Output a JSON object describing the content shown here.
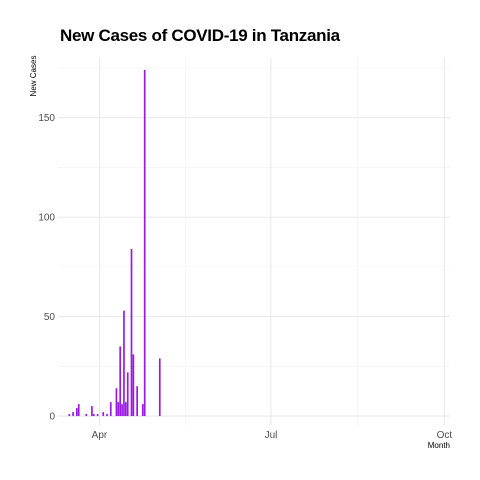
{
  "chart_data": {
    "type": "bar",
    "title": "New Cases of COVID-19 in Tanzania",
    "xlabel": "Month",
    "ylabel": "New Cases",
    "x_axis_type": "date",
    "xlim": [
      "2020-03-10",
      "2020-10-04"
    ],
    "ylim": [
      -5,
      180
    ],
    "y_ticks": [
      0,
      50,
      100,
      150
    ],
    "x_ticks": [
      {
        "date": "2020-04-01",
        "label": "Apr"
      },
      {
        "date": "2020-07-01",
        "label": "Jul"
      },
      {
        "date": "2020-10-01",
        "label": "Oct"
      }
    ],
    "grid": true,
    "bar_color": "#9b1ae3",
    "series": [
      {
        "points": [
          {
            "date": "2020-03-16",
            "value": 1
          },
          {
            "date": "2020-03-18",
            "value": 2
          },
          {
            "date": "2020-03-20",
            "value": 4
          },
          {
            "date": "2020-03-21",
            "value": 6
          },
          {
            "date": "2020-03-25",
            "value": 1
          },
          {
            "date": "2020-03-28",
            "value": 5
          },
          {
            "date": "2020-03-29",
            "value": 1
          },
          {
            "date": "2020-03-31",
            "value": 1
          },
          {
            "date": "2020-04-03",
            "value": 2
          },
          {
            "date": "2020-04-05",
            "value": 1
          },
          {
            "date": "2020-04-07",
            "value": 7
          },
          {
            "date": "2020-04-10",
            "value": 14
          },
          {
            "date": "2020-04-11",
            "value": 7
          },
          {
            "date": "2020-04-12",
            "value": 35
          },
          {
            "date": "2020-04-13",
            "value": 6
          },
          {
            "date": "2020-04-14",
            "value": 53
          },
          {
            "date": "2020-04-15",
            "value": 7
          },
          {
            "date": "2020-04-16",
            "value": 22
          },
          {
            "date": "2020-04-18",
            "value": 84
          },
          {
            "date": "2020-04-19",
            "value": 31
          },
          {
            "date": "2020-04-21",
            "value": 15
          },
          {
            "date": "2020-04-24",
            "value": 6
          },
          {
            "date": "2020-04-25",
            "value": 174
          },
          {
            "date": "2020-05-03",
            "value": 29
          }
        ]
      }
    ]
  }
}
